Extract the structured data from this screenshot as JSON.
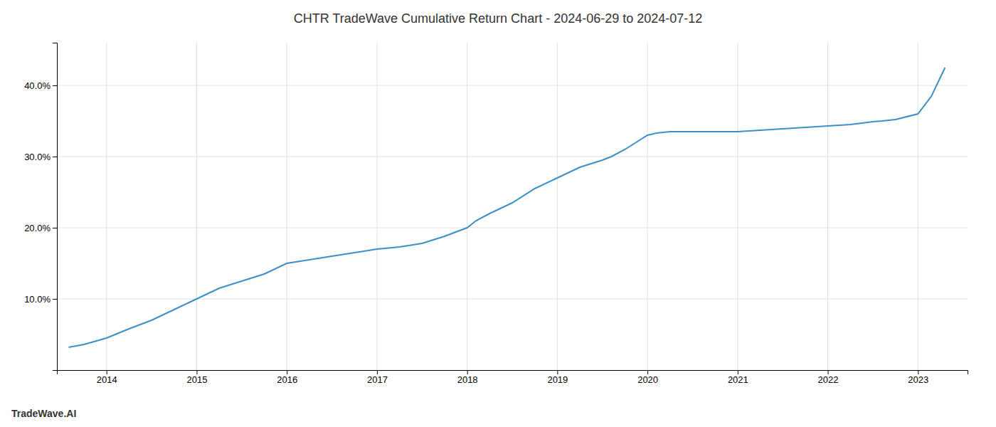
{
  "chart_data": {
    "type": "line",
    "title": "CHTR TradeWave Cumulative Return Chart - 2024-06-29 to 2024-07-12",
    "annotations": [
      "TradeWave.AI"
    ],
    "x": [
      2013.58,
      2013.75,
      2014.0,
      2014.25,
      2014.5,
      2014.75,
      2015.0,
      2015.25,
      2015.5,
      2015.75,
      2016.0,
      2016.15,
      2016.25,
      2016.5,
      2016.75,
      2017.0,
      2017.25,
      2017.5,
      2017.75,
      2018.0,
      2018.1,
      2018.25,
      2018.5,
      2018.75,
      2019.0,
      2019.25,
      2019.5,
      2019.6,
      2019.75,
      2020.0,
      2020.1,
      2020.25,
      2020.5,
      2020.75,
      2021.0,
      2021.25,
      2021.5,
      2021.75,
      2022.0,
      2022.25,
      2022.5,
      2022.6,
      2022.75,
      2023.0,
      2023.15,
      2023.3
    ],
    "values": [
      3.2,
      3.6,
      4.5,
      5.8,
      7.0,
      8.5,
      10.0,
      11.5,
      12.5,
      13.5,
      15.0,
      15.3,
      15.5,
      16.0,
      16.5,
      17.0,
      17.3,
      17.8,
      18.8,
      20.0,
      21.0,
      22.0,
      23.5,
      25.5,
      27.0,
      28.5,
      29.5,
      30.0,
      31.0,
      33.0,
      33.3,
      33.5,
      33.5,
      33.5,
      33.5,
      33.7,
      33.9,
      34.1,
      34.3,
      34.5,
      34.9,
      35.0,
      35.2,
      36.0,
      38.5,
      42.5
    ],
    "color": "#3a8fc9",
    "xlim": [
      2013.45,
      2023.55
    ],
    "ylim": [
      0,
      46
    ],
    "xticks": [
      2014,
      2015,
      2016,
      2017,
      2018,
      2019,
      2020,
      2021,
      2022,
      2023
    ],
    "yticks": [
      {
        "value": 10.0,
        "label": "10.0%"
      },
      {
        "value": 20.0,
        "label": "20.0%"
      },
      {
        "value": 30.0,
        "label": "30.0%"
      },
      {
        "value": 40.0,
        "label": "40.0%"
      }
    ],
    "grid": true
  }
}
